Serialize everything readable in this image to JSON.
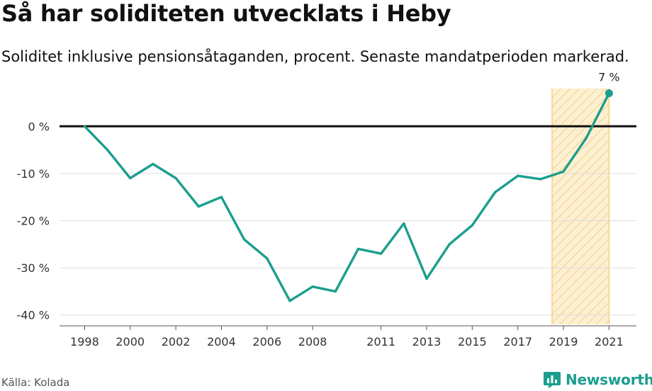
{
  "header": {
    "title": "Så har soliditeten utvecklats i Heby",
    "subtitle": "Soliditet inklusive pensionsåtaganden, procent. Senaste mandatperioden markerad."
  },
  "footer": {
    "source": "Källa: Kolada",
    "brand": "Newsworthy",
    "brand_icon": "newsworthy-logo-icon"
  },
  "colors": {
    "line": "#1b9e8e",
    "highlight_stroke": "#f7c76a",
    "highlight_fill": "#fdf0d2",
    "zero_line": "#111111",
    "grid": "#dddddd"
  },
  "chart_data": {
    "type": "line",
    "title": "Så har soliditeten utvecklats i Heby",
    "subtitle": "Soliditet inklusive pensionsåtaganden, procent. Senaste mandatperioden markerad.",
    "xlabel": "",
    "ylabel": "",
    "x": [
      1998,
      1999,
      2000,
      2001,
      2002,
      2003,
      2004,
      2005,
      2006,
      2007,
      2008,
      2009,
      2010,
      2011,
      2012,
      2013,
      2014,
      2015,
      2016,
      2017,
      2018,
      2019,
      2020,
      2021
    ],
    "values": [
      0,
      -5,
      -11,
      -8,
      -11,
      -17,
      -15,
      -24,
      -28,
      -37,
      -34,
      -35,
      -26,
      -27,
      -20.6,
      -32.3,
      -25,
      -21,
      -14,
      -10.5,
      -11.2,
      -9.6,
      -2.5,
      7
    ],
    "xticks": [
      1998,
      2000,
      2002,
      2004,
      2006,
      2008,
      2011,
      2013,
      2015,
      2017,
      2019,
      2021
    ],
    "yticks": [
      0,
      -10,
      -20,
      -30,
      -40
    ],
    "ytick_suffix": " %",
    "ylim": [
      -42,
      8
    ],
    "xlim": [
      1996.9,
      2022.2
    ],
    "highlight_range": [
      2018.5,
      2021
    ],
    "end_label": "7 %",
    "grid": true
  }
}
